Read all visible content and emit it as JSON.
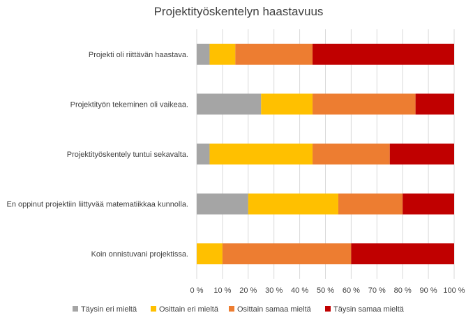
{
  "chart_data": {
    "type": "bar",
    "orientation": "horizontal",
    "stacked": true,
    "percent": true,
    "title": "Projektityöskentelyn haastavuus",
    "categories": [
      "Projekti oli riittävän haastava.",
      "Projektityön tekeminen oli vaikeaa.",
      "Projektityöskentely tuntui sekavalta.",
      "En oppinut projektiin liittyvää matematiikkaa kunnolla.",
      "Koin onnistuvani projektissa."
    ],
    "series": [
      {
        "name": "Täysin eri mieltä",
        "color": "#a5a5a5",
        "values": [
          5,
          25,
          5,
          20,
          0
        ]
      },
      {
        "name": "Osittain eri mieltä",
        "color": "#ffc000",
        "values": [
          10,
          20,
          40,
          35,
          10
        ]
      },
      {
        "name": "Osittain samaa mieltä",
        "color": "#ed7d31",
        "values": [
          30,
          40,
          30,
          25,
          50
        ]
      },
      {
        "name": "Täysin samaa mieltä",
        "color": "#c00000",
        "values": [
          55,
          15,
          25,
          20,
          40
        ]
      }
    ],
    "xlim": [
      0,
      100
    ],
    "xticks": [
      "0 %",
      "10 %",
      "20 %",
      "30 %",
      "40 %",
      "50 %",
      "60 %",
      "70 %",
      "80 %",
      "90 %",
      "100 %"
    ],
    "grid": true,
    "legend_position": "bottom",
    "gridline_color": "#d9d9d9",
    "text_color": "#404040"
  }
}
